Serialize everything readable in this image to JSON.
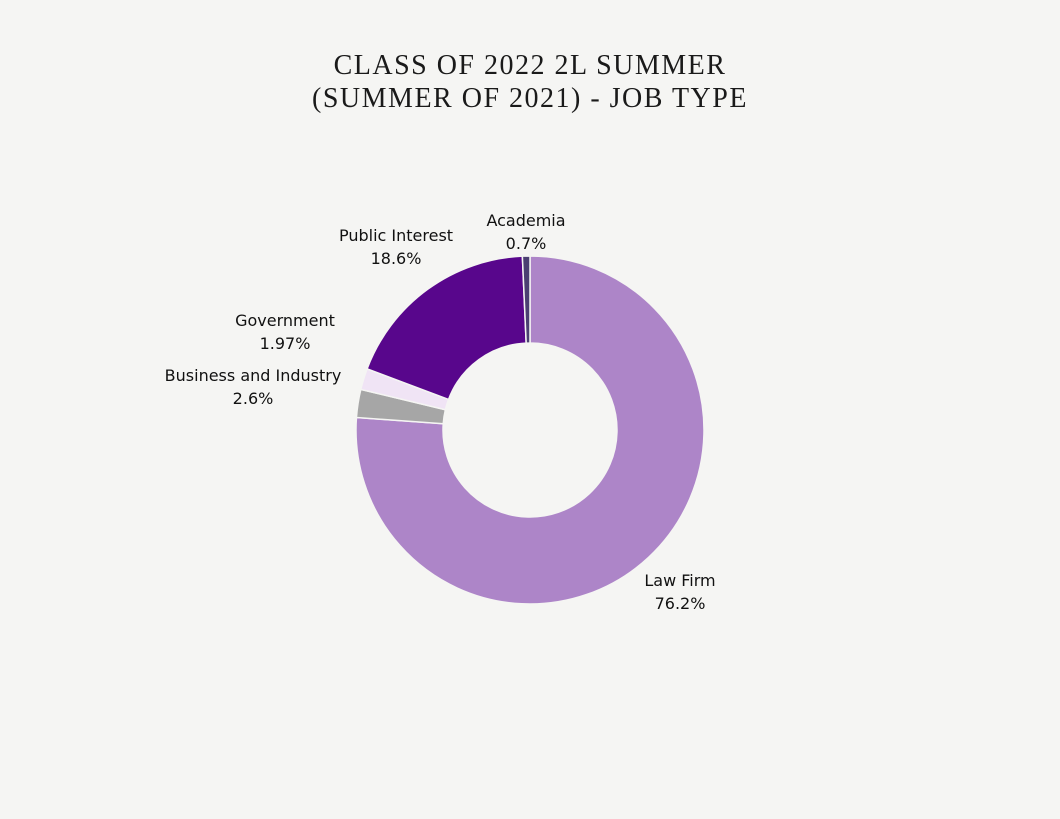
{
  "chart_data": {
    "type": "donut",
    "title": [
      "CLASS OF 2022 2L SUMMER",
      "(SUMMER OF 2021) - JOB TYPE"
    ],
    "categories": [
      "Law Firm",
      "Business and Industry",
      "Government",
      "Public Interest",
      "Academia"
    ],
    "values": [
      76.2,
      2.6,
      1.97,
      18.6,
      0.7
    ],
    "value_labels": [
      "76.2%",
      "2.6%",
      "1.97%",
      "18.6%",
      "0.7%"
    ],
    "colors": [
      "#ad85c8",
      "#a6a6a6",
      "#f0e4f5",
      "#58068c",
      "#4b3f72"
    ]
  }
}
